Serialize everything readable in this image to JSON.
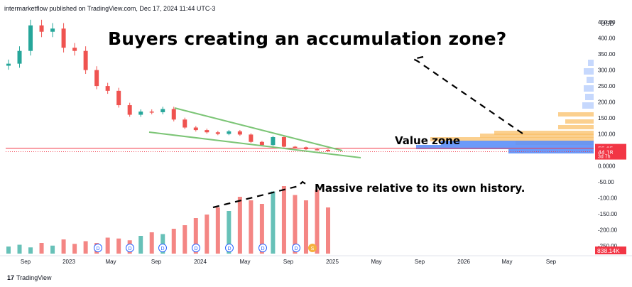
{
  "header": {
    "publisher_line": "intermarketflow published on TradingView.com, Dec 17, 2024 11:44 UTC-3"
  },
  "annotations": {
    "title": "Buyers creating an accumulation zone?",
    "value_zone": "Value zone",
    "volume_note": "Massive relative to its own history."
  },
  "footer": {
    "brand": "TradingView"
  },
  "colors": {
    "up": "#26a69a",
    "down": "#ef5350",
    "trendline": "#7cc576",
    "price_line": "#f23645",
    "vp_up": "#f9c06a",
    "vp_down": "#5b8ff9"
  },
  "chart_data": {
    "type": "candlestick",
    "currency": "USD",
    "price_axis_ticks": [
      "450.00",
      "400.00",
      "350.00",
      "300.00",
      "250.00",
      "200.00",
      "150.00",
      "100.00",
      "50.00",
      "0.0000",
      "-50.00",
      "-100.00",
      "-150.00",
      "-200.00",
      "-250.00"
    ],
    "price_labels": [
      {
        "text": "55.35",
        "color": "#f23645"
      },
      {
        "text": "44.18",
        "color": "#f23645"
      },
      {
        "text": "3d 7h",
        "color": "#f23645"
      }
    ],
    "volume_label": {
      "text": "838.14K",
      "color": "#f23645"
    },
    "time_axis_ticks": [
      "Sep",
      "2023",
      "May",
      "Sep",
      "2024",
      "May",
      "Sep",
      "2025",
      "May",
      "Sep",
      "2026",
      "May",
      "Sep"
    ],
    "dividend_markers": [
      "D",
      "D",
      "D",
      "D",
      "D",
      "D",
      "D",
      "S"
    ],
    "price_path": [
      {
        "date": "2022-07",
        "price": 320
      },
      {
        "date": "2022-08",
        "price": 360
      },
      {
        "date": "2022-09",
        "price": 440
      },
      {
        "date": "2022-10",
        "price": 420
      },
      {
        "date": "2022-11",
        "price": 430
      },
      {
        "date": "2022-12",
        "price": 370
      },
      {
        "date": "2023-01",
        "price": 360
      },
      {
        "date": "2023-02",
        "price": 300
      },
      {
        "date": "2023-03",
        "price": 250
      },
      {
        "date": "2023-04",
        "price": 235
      },
      {
        "date": "2023-05",
        "price": 190
      },
      {
        "date": "2023-06",
        "price": 160
      },
      {
        "date": "2023-07",
        "price": 170
      },
      {
        "date": "2023-08",
        "price": 168
      },
      {
        "date": "2023-09",
        "price": 178
      },
      {
        "date": "2023-10",
        "price": 145
      },
      {
        "date": "2023-11",
        "price": 120
      },
      {
        "date": "2023-12",
        "price": 112
      },
      {
        "date": "2024-01",
        "price": 105
      },
      {
        "date": "2024-02",
        "price": 100
      },
      {
        "date": "2024-03",
        "price": 108
      },
      {
        "date": "2024-04",
        "price": 98
      },
      {
        "date": "2024-05",
        "price": 75
      },
      {
        "date": "2024-06",
        "price": 65
      },
      {
        "date": "2024-07",
        "price": 90
      },
      {
        "date": "2024-08",
        "price": 60
      },
      {
        "date": "2024-09",
        "price": 58
      },
      {
        "date": "2024-10",
        "price": 52
      },
      {
        "date": "2024-11",
        "price": 50
      },
      {
        "date": "2024-12",
        "price": 46
      }
    ],
    "volume_k": [
      40,
      50,
      35,
      60,
      45,
      80,
      55,
      70,
      60,
      90,
      85,
      75,
      100,
      120,
      110,
      140,
      160,
      200,
      220,
      260,
      240,
      320,
      300,
      280,
      350,
      380,
      330,
      300,
      360,
      260
    ]
  }
}
